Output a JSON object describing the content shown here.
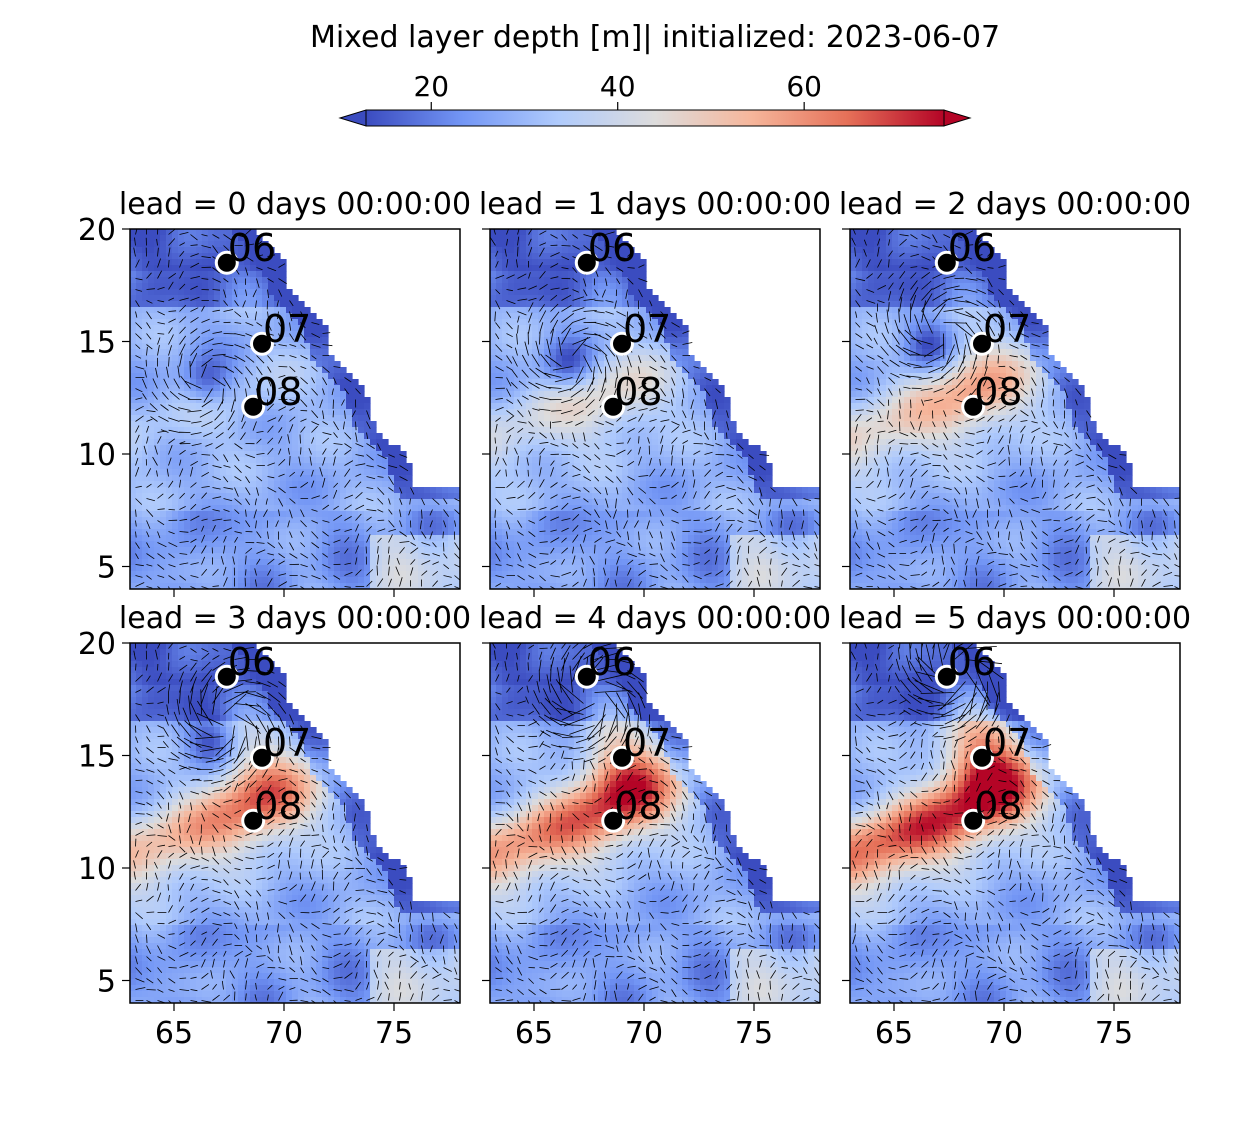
{
  "figure": {
    "title": "Mixed layer depth [m]| initialized: 2023-06-07"
  },
  "colorbar": {
    "ticks": [
      20,
      40,
      60
    ],
    "range": [
      13,
      75
    ],
    "extend": "both",
    "colormap": "coolwarm",
    "colors": [
      "#3b4cc0",
      "#7396f5",
      "#b0cbfc",
      "#dddcdc",
      "#f6b69b",
      "#e57058",
      "#b40426"
    ]
  },
  "chart_data": [
    {
      "type": "heatmap",
      "title": "lead = 0 days 00:00:00",
      "lead_days": 0,
      "xlim": [
        63,
        78
      ],
      "ylim": [
        4,
        20
      ],
      "xticks": [
        65,
        70,
        75
      ],
      "yticks": [
        5,
        10,
        15,
        20
      ],
      "show_xticklabels": false,
      "show_yticklabels": true,
      "points": [
        {
          "label": "06",
          "lon": 67.4,
          "lat": 18.5
        },
        {
          "label": "07",
          "lon": 69.0,
          "lat": 14.9
        },
        {
          "label": "08",
          "lon": 68.6,
          "lat": 12.1
        }
      ]
    },
    {
      "type": "heatmap",
      "title": "lead = 1 days 00:00:00",
      "lead_days": 1,
      "xlim": [
        63,
        78
      ],
      "ylim": [
        4,
        20
      ],
      "xticks": [
        65,
        70,
        75
      ],
      "yticks": [
        5,
        10,
        15,
        20
      ],
      "show_xticklabels": false,
      "show_yticklabels": false,
      "points": [
        {
          "label": "06",
          "lon": 67.4,
          "lat": 18.5
        },
        {
          "label": "07",
          "lon": 69.0,
          "lat": 14.9
        },
        {
          "label": "08",
          "lon": 68.6,
          "lat": 12.1
        }
      ]
    },
    {
      "type": "heatmap",
      "title": "lead = 2 days 00:00:00",
      "lead_days": 2,
      "xlim": [
        63,
        78
      ],
      "ylim": [
        4,
        20
      ],
      "xticks": [
        65,
        70,
        75
      ],
      "yticks": [
        5,
        10,
        15,
        20
      ],
      "show_xticklabels": false,
      "show_yticklabels": false,
      "points": [
        {
          "label": "06",
          "lon": 67.4,
          "lat": 18.5
        },
        {
          "label": "07",
          "lon": 69.0,
          "lat": 14.9
        },
        {
          "label": "08",
          "lon": 68.6,
          "lat": 12.1
        }
      ]
    },
    {
      "type": "heatmap",
      "title": "lead = 3 days 00:00:00",
      "lead_days": 3,
      "xlim": [
        63,
        78
      ],
      "ylim": [
        4,
        20
      ],
      "xticks": [
        65,
        70,
        75
      ],
      "yticks": [
        5,
        10,
        15,
        20
      ],
      "show_xticklabels": true,
      "show_yticklabels": true,
      "points": [
        {
          "label": "06",
          "lon": 67.4,
          "lat": 18.5
        },
        {
          "label": "07",
          "lon": 69.0,
          "lat": 14.9
        },
        {
          "label": "08",
          "lon": 68.6,
          "lat": 12.1
        }
      ]
    },
    {
      "type": "heatmap",
      "title": "lead = 4 days 00:00:00",
      "lead_days": 4,
      "xlim": [
        63,
        78
      ],
      "ylim": [
        4,
        20
      ],
      "xticks": [
        65,
        70,
        75
      ],
      "yticks": [
        5,
        10,
        15,
        20
      ],
      "show_xticklabels": true,
      "show_yticklabels": false,
      "points": [
        {
          "label": "06",
          "lon": 67.4,
          "lat": 18.5
        },
        {
          "label": "07",
          "lon": 69.0,
          "lat": 14.9
        },
        {
          "label": "08",
          "lon": 68.6,
          "lat": 12.1
        }
      ]
    },
    {
      "type": "heatmap",
      "title": "lead = 5 days 00:00:00",
      "lead_days": 5,
      "xlim": [
        63,
        78
      ],
      "ylim": [
        4,
        20
      ],
      "xticks": [
        65,
        70,
        75
      ],
      "yticks": [
        5,
        10,
        15,
        20
      ],
      "show_xticklabels": true,
      "show_yticklabels": false,
      "points": [
        {
          "label": "06",
          "lon": 67.4,
          "lat": 18.5
        },
        {
          "label": "07",
          "lon": 69.0,
          "lat": 14.9
        },
        {
          "label": "08",
          "lon": 68.6,
          "lat": 12.1
        }
      ]
    }
  ]
}
